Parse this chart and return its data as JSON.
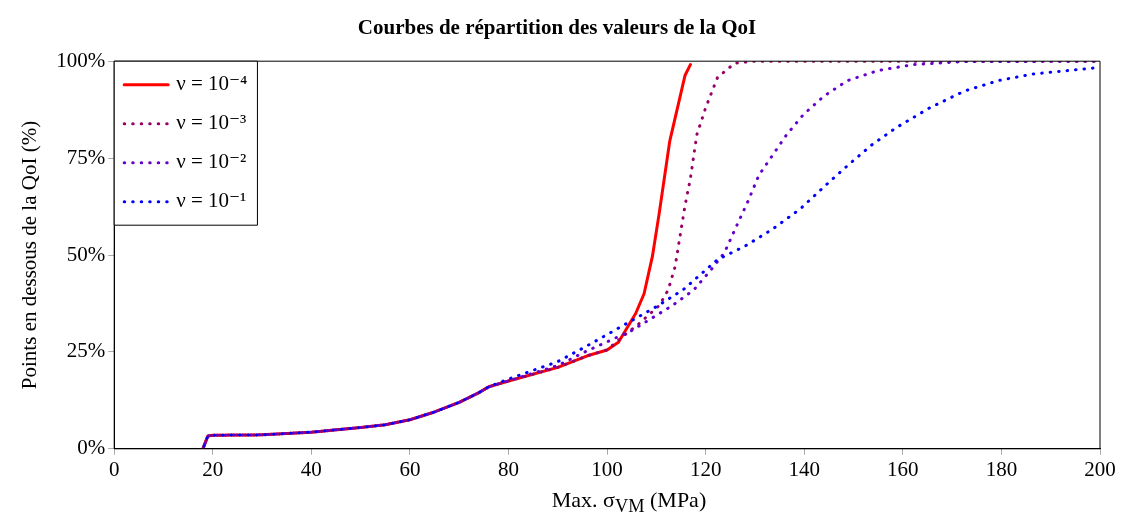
{
  "chart_data": {
    "type": "line",
    "title": "Courbes de répartition des valeurs de la QoI",
    "xlabel": "Max. σ$_{VM}$ (MPa)",
    "ylabel": "Points en dessous de la QoI (%)",
    "xlim": [
      0,
      200
    ],
    "xticks": [
      0,
      20,
      40,
      60,
      80,
      100,
      120,
      140,
      160,
      180,
      200
    ],
    "ylim": [
      0,
      100
    ],
    "yticks": [
      {
        "value": 0,
        "label": "0%"
      },
      {
        "value": 25,
        "label": "25%"
      },
      {
        "value": 50,
        "label": "50%"
      },
      {
        "value": 75,
        "label": "75%"
      },
      {
        "value": 100,
        "label": "100%"
      }
    ],
    "grid": false,
    "legend": "top left",
    "marker": "none",
    "series": [
      {
        "name": "ν = 10⁻⁴",
        "color": "#ff0000",
        "line_style": "solid",
        "x": [
          18,
          19,
          20,
          30,
          40,
          50,
          55,
          60,
          65,
          70,
          74,
          76,
          80,
          90,
          96,
          100,
          102.3,
          105.8,
          107.5,
          109.2,
          110.6,
          112.7,
          115.8,
          116.9
        ],
        "values": [
          0,
          3.3,
          3.5,
          3.6,
          4.3,
          5.5,
          6.2,
          7.5,
          9.5,
          12,
          14.5,
          16,
          17.5,
          21,
          24,
          25.5,
          27.5,
          34.9,
          40,
          49.7,
          61,
          79.3,
          96.3,
          99.1
        ]
      },
      {
        "name": "ν = 10⁻³",
        "color": "#990066",
        "line_style": "dotted",
        "x": [
          18,
          19,
          20,
          30,
          40,
          50,
          55,
          60,
          65,
          70,
          74,
          76,
          80,
          90,
          96,
          100,
          103,
          106.5,
          110.6,
          112.4,
          113.8,
          114.8,
          115.8,
          116.9,
          118.2,
          120,
          122.4,
          125.9,
          130,
          200
        ],
        "values": [
          0,
          3.3,
          3.5,
          3.6,
          4.3,
          5.5,
          6.2,
          7.5,
          9.5,
          12,
          14.5,
          16,
          17.5,
          21,
          24,
          25.5,
          28.8,
          32.3,
          37,
          41,
          47,
          54.9,
          62.7,
          69.7,
          81,
          88,
          95.8,
          99.5,
          100,
          100
        ]
      },
      {
        "name": "ν = 10⁻²",
        "color": "#6600cc",
        "line_style": "dotted",
        "x": [
          18,
          19,
          20,
          30,
          40,
          50,
          55,
          60,
          65,
          70,
          74,
          76,
          80,
          90,
          96,
          105,
          113.4,
          117.6,
          121.1,
          123.8,
          126.6,
          128.7,
          130.8,
          133.6,
          136.4,
          139.8,
          144,
          148.8,
          155,
          162,
          172.4,
          200
        ],
        "values": [
          0,
          3.3,
          3.5,
          3.6,
          4.3,
          5.5,
          6.2,
          7.5,
          9.5,
          12,
          14.5,
          16,
          17.5,
          21.5,
          25.3,
          30.5,
          37.1,
          41,
          46.2,
          50.6,
          58.4,
          64.2,
          70.6,
          75.8,
          81,
          86.2,
          91,
          95,
          97.6,
          99.1,
          99.9,
          100
        ]
      },
      {
        "name": "ν = 10⁻¹",
        "color": "#0000ff",
        "line_style": "dotted",
        "x": [
          18,
          19,
          20,
          30,
          40,
          50,
          55,
          60,
          65,
          70,
          74,
          76,
          80,
          90,
          96,
          109.9,
          115.4,
          122.4,
          128,
          133.6,
          139.2,
          144.7,
          148.9,
          153.7,
          158.6,
          165.5,
          172.5,
          179.4,
          186.4,
          200
        ],
        "values": [
          0,
          3.3,
          3.5,
          3.6,
          4.3,
          5.5,
          6.2,
          7.5,
          9.5,
          12,
          14.5,
          16,
          18,
          22.5,
          26.6,
          36.6,
          41,
          48.8,
          52.3,
          56.7,
          61.9,
          68.4,
          73.2,
          78.4,
          82.8,
          88,
          92.3,
          95,
          96.7,
          98.4
        ]
      }
    ]
  }
}
